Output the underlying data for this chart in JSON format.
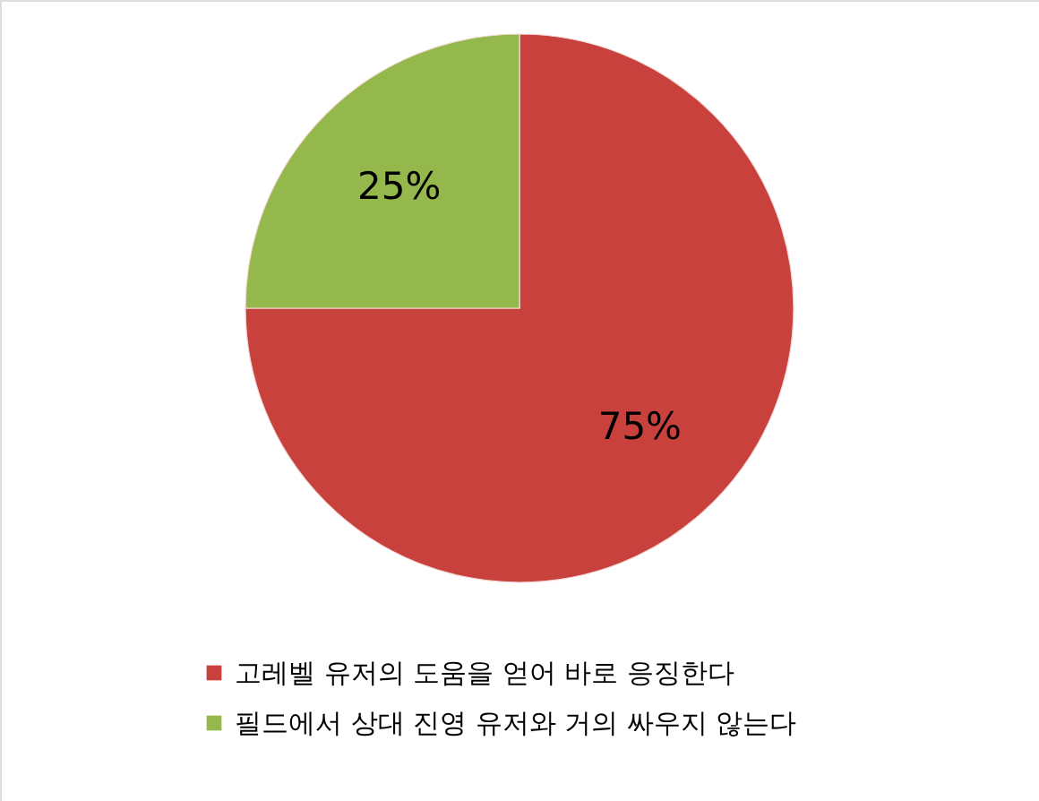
{
  "chart_data": {
    "type": "pie",
    "categories": [
      "고레벨 유저의 도움을 얻어 바로 응징한다",
      "필드에서 상대 진영 유저와 거의 싸우지 않는다"
    ],
    "values": [
      75,
      25
    ],
    "colors": [
      "#c9413d",
      "#94b84c"
    ],
    "value_labels": [
      "75%",
      "25%"
    ],
    "legend": "bottom"
  }
}
